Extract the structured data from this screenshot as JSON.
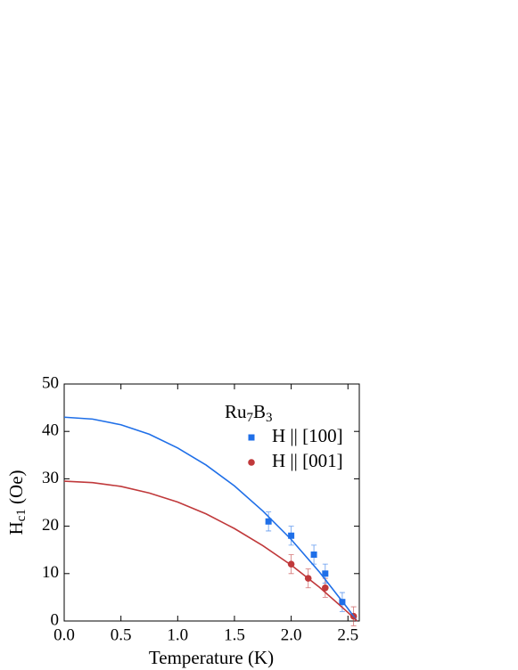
{
  "chart_data": {
    "type": "scatter",
    "x_label": "Temperature  (K)",
    "y_label": [
      "H",
      "c1",
      " (Oe)"
    ],
    "legend_title": [
      "Ru",
      "7",
      "B",
      "3"
    ],
    "legend": "upper right",
    "xlim": [
      0,
      2.6
    ],
    "ylim": [
      0,
      50
    ],
    "xticks": [
      {
        "value": 0,
        "label": "0.0"
      },
      0.5,
      {
        "value": 1,
        "label": "1.0"
      },
      1.5,
      {
        "value": 2,
        "label": "2.0"
      },
      2.5
    ],
    "yticks": [
      0,
      10,
      20,
      30,
      40,
      50
    ],
    "series": [
      {
        "name": "H || [100]",
        "color": "#1f6fe8",
        "marker": "square",
        "x": [
          1.8,
          2.0,
          2.2,
          2.3,
          2.45
        ],
        "values": [
          21,
          18,
          14,
          10,
          4
        ],
        "errors": [
          2,
          2,
          2,
          2,
          2
        ]
      },
      {
        "name": "H || [001]",
        "color": "#c0393b",
        "marker": "circle",
        "x": [
          2.0,
          2.15,
          2.3,
          2.55
        ],
        "values": [
          12,
          9,
          7,
          1
        ],
        "errors": [
          2,
          2,
          2,
          2
        ]
      },
      {
        "color": "#1f6fe8",
        "style": "line",
        "x": [
          0,
          0.25,
          0.5,
          0.75,
          1.0,
          1.25,
          1.5,
          1.75,
          2.0,
          2.25,
          2.5,
          2.58
        ],
        "values": [
          43,
          42.6,
          41.4,
          39.4,
          36.5,
          32.9,
          28.5,
          23.2,
          17.2,
          10.3,
          2.6,
          0
        ]
      },
      {
        "color": "#c0393b",
        "style": "line",
        "x": [
          0,
          0.25,
          0.5,
          0.75,
          1.0,
          1.25,
          1.5,
          1.75,
          2.0,
          2.25,
          2.5,
          2.58
        ],
        "values": [
          29.5,
          29.2,
          28.4,
          27.0,
          25.1,
          22.6,
          19.5,
          15.9,
          11.8,
          7.1,
          1.8,
          0
        ]
      }
    ]
  }
}
